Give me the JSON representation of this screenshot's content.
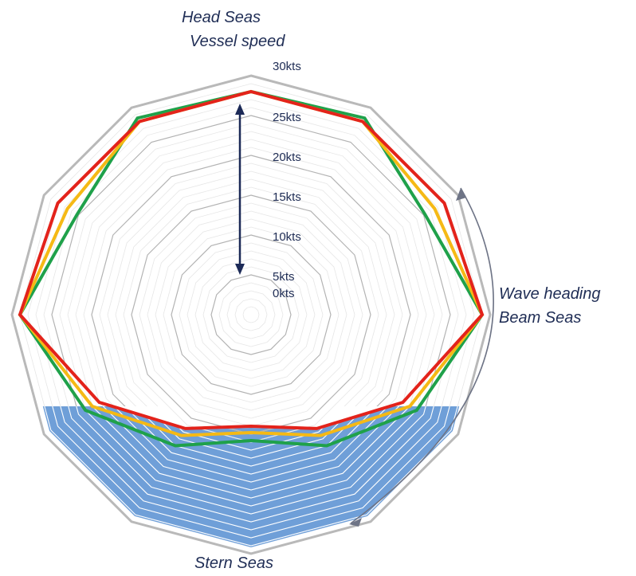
{
  "labels": {
    "top_line1": "Head Seas",
    "top_line2": "Vessel speed",
    "right_line1": "Wave heading",
    "right_line2": "Beam Seas",
    "bottom": "Stern Seas"
  },
  "chart_data": {
    "type": "radar",
    "sides": 12,
    "radial_max": 30,
    "tick_labels": [
      "30kts",
      "25kts",
      "20kts",
      "15kts",
      "10kts",
      "5kts",
      "0kts"
    ],
    "tick_values": [
      30,
      25,
      20,
      15,
      10,
      5,
      0
    ],
    "minor_step": 1,
    "series": [
      {
        "color": "#e3231b",
        "values": [
          28,
          28,
          28,
          29,
          22,
          16.5,
          14,
          16.5,
          22,
          29,
          28,
          28
        ]
      },
      {
        "color": "#f5b915",
        "values": [
          28,
          28,
          26.6,
          29,
          23,
          17.5,
          14.8,
          17.5,
          23,
          29,
          26.6,
          28
        ]
      },
      {
        "color": "#1fa14a",
        "values": [
          28,
          28.5,
          25.2,
          29,
          24,
          19,
          15.8,
          19,
          24,
          29,
          25.2,
          28.5
        ]
      }
    ],
    "outer_polygon_color": "#b9b9b9",
    "stern_shading_color": "#6f9fd8",
    "arrow_color": "#1c2a57"
  }
}
